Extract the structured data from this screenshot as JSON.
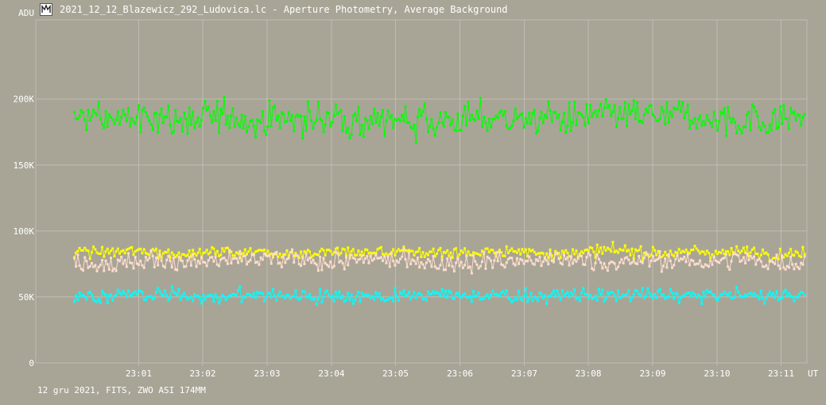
{
  "window": {
    "title": "2021_12_12_Blazewicz_292_Ludovica.lc - Aperture Photometry, Average Background",
    "icon": "app-icon"
  },
  "footer": {
    "text": "12 gru 2021, FITS, ZWO ASI 174MM"
  },
  "chart_data": {
    "type": "line",
    "ylabel": "ADU",
    "xlabel": "UT",
    "ylim": [
      0,
      260000
    ],
    "xlim": [
      22.99,
      23.19
    ],
    "grid": true,
    "y_ticks": [
      {
        "value": 0,
        "label": "0"
      },
      {
        "value": 50000,
        "label": "50K"
      },
      {
        "value": 100000,
        "label": "100K"
      },
      {
        "value": 150000,
        "label": "150K"
      },
      {
        "value": 200000,
        "label": "200K"
      }
    ],
    "x_ticks": [
      {
        "value": 23.0167,
        "label": "23:01"
      },
      {
        "value": 23.0333,
        "label": "23:02"
      },
      {
        "value": 23.05,
        "label": "23:03"
      },
      {
        "value": 23.0667,
        "label": "23:04"
      },
      {
        "value": 23.0833,
        "label": "23:05"
      },
      {
        "value": 23.1,
        "label": "23:06"
      },
      {
        "value": 23.1167,
        "label": "23:07"
      },
      {
        "value": 23.1333,
        "label": "23:08"
      },
      {
        "value": 23.15,
        "label": "23:09"
      },
      {
        "value": 23.1667,
        "label": "23:10"
      },
      {
        "value": 23.1833,
        "label": "23:11"
      }
    ],
    "colors": {
      "background": "#a8a597",
      "grid": "#c0bdb2",
      "text": "#ffffff"
    },
    "series": [
      {
        "color": "#00ff00",
        "mean": 185000,
        "spread": 7000,
        "values": []
      },
      {
        "color": "#ffff00",
        "mean": 84000,
        "spread": 2500,
        "values": []
      },
      {
        "color": "#ffdccc",
        "mean": 77000,
        "spread": 4000,
        "values": []
      },
      {
        "color": "#00ffff",
        "mean": 51000,
        "spread": 3000,
        "values": []
      }
    ],
    "n_points": 420
  }
}
